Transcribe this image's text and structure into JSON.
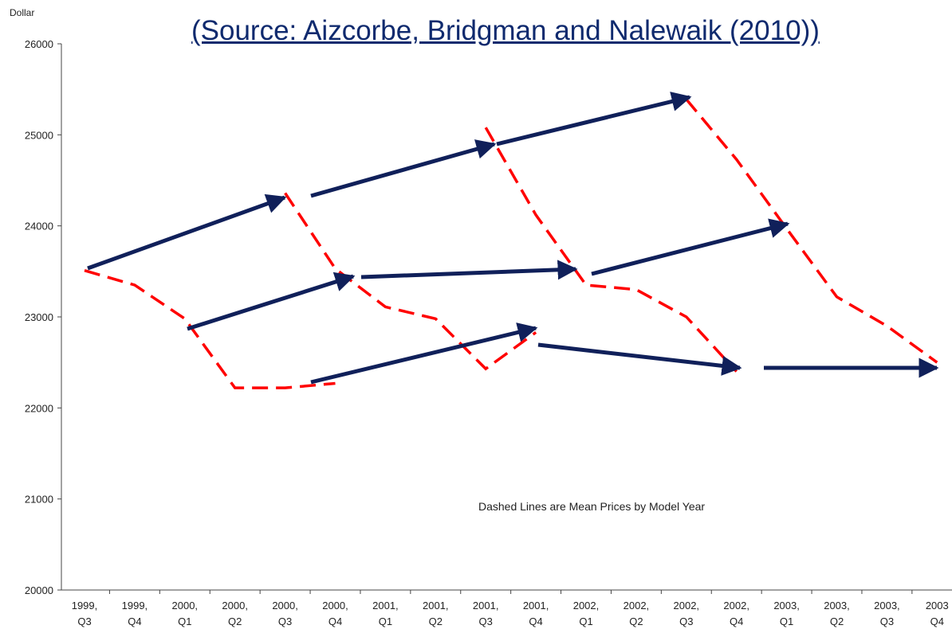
{
  "chart_data": {
    "type": "line",
    "title": "(Source: Aizcorbe, Bridgman and Nalewaik (2010))",
    "y_label": "Dollar",
    "annotation": "Dashed Lines are Mean Prices by Model Year",
    "categories": [
      "1999, Q3",
      "1999, Q4",
      "2000, Q1",
      "2000, Q2",
      "2000, Q3",
      "2000, Q4",
      "2001, Q1",
      "2001, Q2",
      "2001, Q3",
      "2001, Q4",
      "2002, Q1",
      "2002, Q2",
      "2002, Q3",
      "2002, Q4",
      "2003, Q1",
      "2003, Q2",
      "2003, Q3",
      "2003 Q4"
    ],
    "series": [
      {
        "color": "#ff0000",
        "values": [
          23510,
          23350,
          22980,
          22220,
          22220,
          22270,
          null,
          null,
          null,
          null,
          null,
          null,
          null,
          null,
          null,
          null,
          null,
          null
        ]
      },
      {
        "color": "#ff0000",
        "values": [
          null,
          null,
          null,
          null,
          24360,
          23530,
          23110,
          22980,
          22430,
          22830,
          null,
          null,
          null,
          null,
          null,
          null,
          null,
          null
        ]
      },
      {
        "color": "#ff0000",
        "values": [
          null,
          null,
          null,
          null,
          null,
          null,
          null,
          null,
          25080,
          24120,
          23350,
          23300,
          23000,
          22400,
          null,
          null,
          null,
          null
        ]
      },
      {
        "color": "#ff0000",
        "values": [
          null,
          null,
          null,
          null,
          null,
          null,
          null,
          null,
          null,
          null,
          null,
          null,
          25390,
          24730,
          23970,
          23220,
          22900,
          22500
        ]
      }
    ],
    "ylim": [
      20000,
      26000
    ],
    "yticks": [
      20000,
      21000,
      22000,
      23000,
      24000,
      25000,
      26000
    ]
  }
}
